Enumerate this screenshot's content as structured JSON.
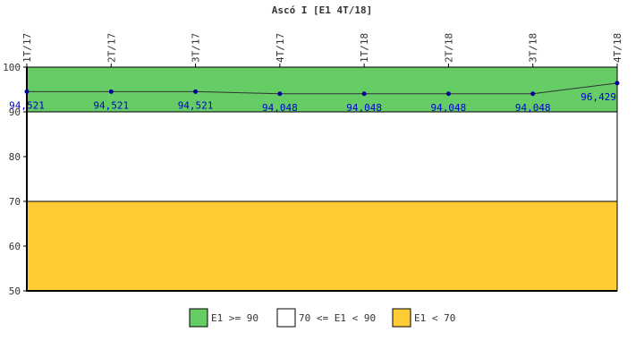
{
  "chart_data": {
    "type": "line",
    "title": "Ascó I [E1 4T/18]",
    "categories": [
      "1T/17",
      "2T/17",
      "3T/17",
      "4T/17",
      "1T/18",
      "2T/18",
      "3T/18",
      "4T/18"
    ],
    "values": [
      94.521,
      94.521,
      94.521,
      94.048,
      94.048,
      94.048,
      94.048,
      96.429
    ],
    "value_labels": [
      "94,521",
      "94,521",
      "94,521",
      "94,048",
      "94,048",
      "94,048",
      "94,048",
      "96,429"
    ],
    "ylim": [
      50,
      100
    ],
    "yticks": [
      50,
      60,
      70,
      80,
      90,
      100
    ],
    "line_color": "#333333",
    "marker_color": "#000099",
    "label_color": "#0000cc",
    "bands": [
      {
        "from": 90,
        "to": 100,
        "color": "#66cc66",
        "label": "E1 >= 90"
      },
      {
        "from": 70,
        "to": 90,
        "color": "#ffffff",
        "label": "70 <= E1 < 90"
      },
      {
        "from": 50,
        "to": 70,
        "color": "#ffcc33",
        "label": "E1 < 70"
      }
    ],
    "legend_position": "bottom"
  }
}
